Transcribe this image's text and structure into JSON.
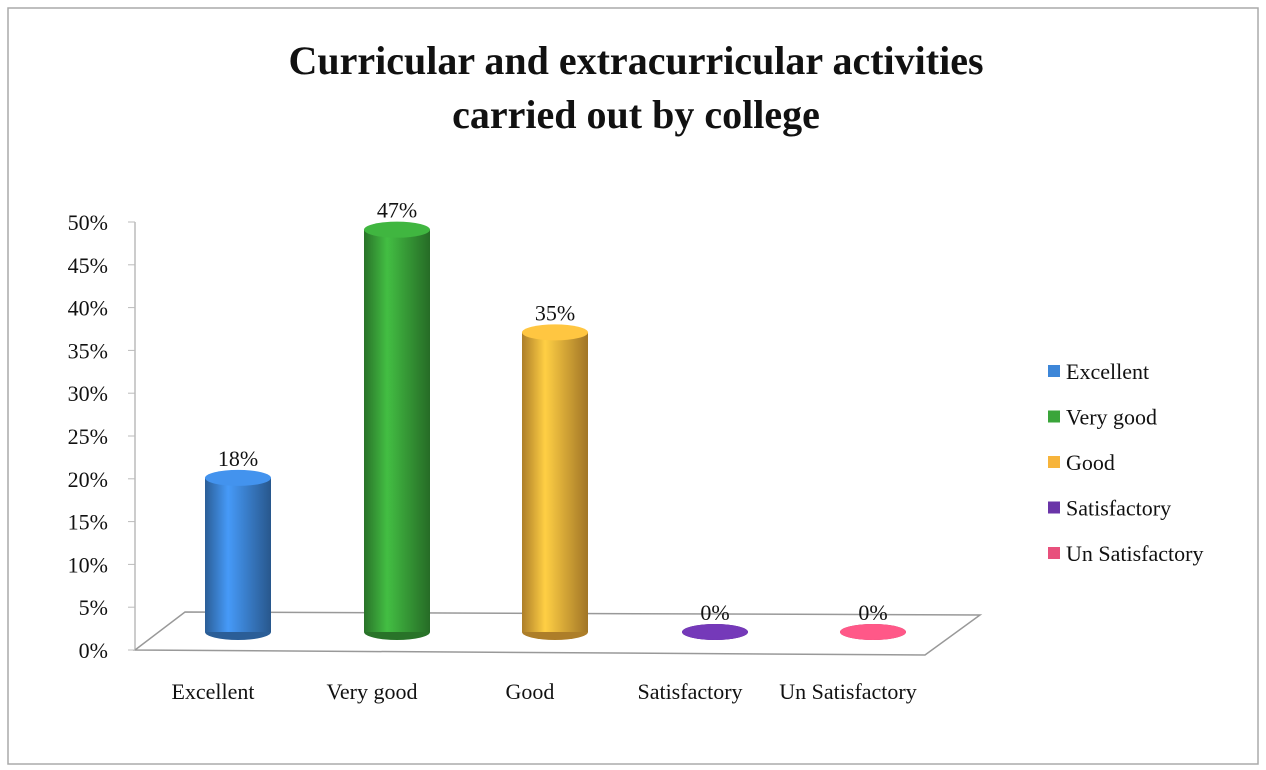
{
  "chart_data": {
    "type": "cylinder_bar",
    "title": [
      "Curricular and extracurricular activities",
      "carried out by college"
    ],
    "categories": [
      "Excellent",
      "Very good",
      "Good",
      "Satisfactory",
      "Un Satisfactory"
    ],
    "values": [
      18,
      47,
      35,
      0,
      0
    ],
    "value_labels": [
      "18%",
      "47%",
      "35%",
      "0%",
      "0%"
    ],
    "colors": [
      "#3d86d8",
      "#3aa53a",
      "#f7b43b",
      "#6a34a8",
      "#e8507c"
    ],
    "ylim": [
      0,
      50
    ],
    "yticks": [
      {
        "value": 0,
        "label": "0%"
      },
      {
        "value": 5,
        "label": "5%"
      },
      {
        "value": 10,
        "label": "10%"
      },
      {
        "value": 15,
        "label": "15%"
      },
      {
        "value": 20,
        "label": "20%"
      },
      {
        "value": 25,
        "label": "25%"
      },
      {
        "value": 30,
        "label": "30%"
      },
      {
        "value": 35,
        "label": "35%"
      },
      {
        "value": 40,
        "label": "40%"
      },
      {
        "value": 45,
        "label": "45%"
      },
      {
        "value": 50,
        "label": "50%"
      }
    ],
    "legend": "right"
  }
}
